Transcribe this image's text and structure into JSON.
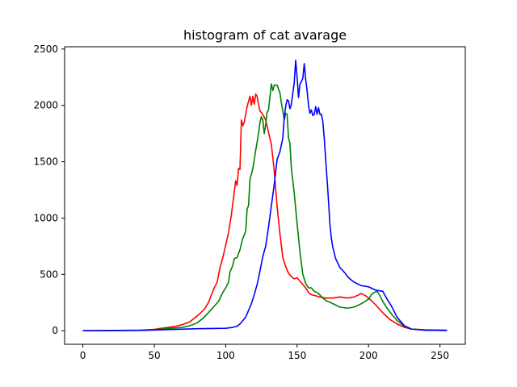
{
  "chart_data": {
    "type": "line",
    "title": "histogram of cat avarage",
    "xlabel": "",
    "ylabel": "",
    "xlim": [
      -12.75,
      267.75
    ],
    "ylim": [
      -120,
      2520
    ],
    "xticks": [
      0,
      50,
      100,
      150,
      200,
      250
    ],
    "yticks": [
      0,
      500,
      1000,
      1500,
      2000,
      2500
    ],
    "grid": false,
    "series": [
      {
        "color": "#ff0000",
        "points": [
          [
            0,
            0
          ],
          [
            20,
            2
          ],
          [
            40,
            5
          ],
          [
            50,
            12
          ],
          [
            55,
            22
          ],
          [
            60,
            30
          ],
          [
            65,
            40
          ],
          [
            70,
            55
          ],
          [
            75,
            80
          ],
          [
            80,
            130
          ],
          [
            85,
            190
          ],
          [
            88,
            250
          ],
          [
            90,
            320
          ],
          [
            92,
            380
          ],
          [
            94,
            430
          ],
          [
            96,
            560
          ],
          [
            98,
            650
          ],
          [
            100,
            760
          ],
          [
            102,
            870
          ],
          [
            104,
            1030
          ],
          [
            106,
            1230
          ],
          [
            107,
            1330
          ],
          [
            108,
            1290
          ],
          [
            109,
            1440
          ],
          [
            110,
            1430
          ],
          [
            111,
            1870
          ],
          [
            112,
            1820
          ],
          [
            113,
            1850
          ],
          [
            115,
            1990
          ],
          [
            117,
            2080
          ],
          [
            118,
            2000
          ],
          [
            119,
            2080
          ],
          [
            120,
            2010
          ],
          [
            121,
            2100
          ],
          [
            122,
            2080
          ],
          [
            123,
            2010
          ],
          [
            124,
            1950
          ],
          [
            126,
            1920
          ],
          [
            128,
            1870
          ],
          [
            130,
            1760
          ],
          [
            132,
            1650
          ],
          [
            134,
            1420
          ],
          [
            136,
            1100
          ],
          [
            138,
            860
          ],
          [
            140,
            650
          ],
          [
            142,
            570
          ],
          [
            144,
            510
          ],
          [
            146,
            480
          ],
          [
            148,
            460
          ],
          [
            150,
            470
          ],
          [
            152,
            440
          ],
          [
            154,
            410
          ],
          [
            156,
            380
          ],
          [
            158,
            340
          ],
          [
            160,
            320
          ],
          [
            163,
            310
          ],
          [
            166,
            300
          ],
          [
            170,
            290
          ],
          [
            175,
            290
          ],
          [
            180,
            300
          ],
          [
            185,
            290
          ],
          [
            190,
            300
          ],
          [
            195,
            330
          ],
          [
            198,
            310
          ],
          [
            200,
            290
          ],
          [
            205,
            230
          ],
          [
            210,
            160
          ],
          [
            215,
            100
          ],
          [
            220,
            60
          ],
          [
            225,
            30
          ],
          [
            230,
            15
          ],
          [
            240,
            8
          ],
          [
            255,
            5
          ]
        ]
      },
      {
        "color": "#008000",
        "points": [
          [
            0,
            0
          ],
          [
            20,
            2
          ],
          [
            40,
            5
          ],
          [
            50,
            10
          ],
          [
            55,
            15
          ],
          [
            60,
            20
          ],
          [
            65,
            25
          ],
          [
            70,
            30
          ],
          [
            75,
            45
          ],
          [
            80,
            70
          ],
          [
            85,
            120
          ],
          [
            90,
            190
          ],
          [
            95,
            260
          ],
          [
            98,
            340
          ],
          [
            100,
            380
          ],
          [
            102,
            430
          ],
          [
            103,
            520
          ],
          [
            105,
            580
          ],
          [
            106,
            640
          ],
          [
            108,
            650
          ],
          [
            110,
            720
          ],
          [
            112,
            820
          ],
          [
            114,
            880
          ],
          [
            115,
            1080
          ],
          [
            116,
            1110
          ],
          [
            117,
            1340
          ],
          [
            119,
            1440
          ],
          [
            121,
            1600
          ],
          [
            123,
            1750
          ],
          [
            124,
            1850
          ],
          [
            125,
            1900
          ],
          [
            126,
            1870
          ],
          [
            127,
            1750
          ],
          [
            128,
            1830
          ],
          [
            129,
            1940
          ],
          [
            130,
            1960
          ],
          [
            131,
            2080
          ],
          [
            132,
            2190
          ],
          [
            133,
            2130
          ],
          [
            134,
            2180
          ],
          [
            136,
            2180
          ],
          [
            138,
            2110
          ],
          [
            139,
            2020
          ],
          [
            140,
            1950
          ],
          [
            141,
            1870
          ],
          [
            142,
            1930
          ],
          [
            143,
            1920
          ],
          [
            144,
            1710
          ],
          [
            145,
            1660
          ],
          [
            146,
            1440
          ],
          [
            148,
            1220
          ],
          [
            150,
            950
          ],
          [
            152,
            700
          ],
          [
            154,
            500
          ],
          [
            156,
            420
          ],
          [
            158,
            380
          ],
          [
            160,
            380
          ],
          [
            162,
            350
          ],
          [
            165,
            330
          ],
          [
            168,
            290
          ],
          [
            170,
            270
          ],
          [
            175,
            240
          ],
          [
            180,
            210
          ],
          [
            185,
            200
          ],
          [
            190,
            210
          ],
          [
            195,
            240
          ],
          [
            200,
            280
          ],
          [
            202,
            320
          ],
          [
            204,
            340
          ],
          [
            206,
            350
          ],
          [
            208,
            310
          ],
          [
            210,
            260
          ],
          [
            213,
            200
          ],
          [
            216,
            150
          ],
          [
            220,
            90
          ],
          [
            225,
            40
          ],
          [
            230,
            15
          ],
          [
            240,
            5
          ],
          [
            255,
            3
          ]
        ]
      },
      {
        "color": "#0000ff",
        "points": [
          [
            0,
            0
          ],
          [
            20,
            1
          ],
          [
            40,
            3
          ],
          [
            60,
            10
          ],
          [
            80,
            18
          ],
          [
            90,
            20
          ],
          [
            100,
            22
          ],
          [
            105,
            30
          ],
          [
            108,
            40
          ],
          [
            110,
            60
          ],
          [
            112,
            90
          ],
          [
            114,
            120
          ],
          [
            116,
            180
          ],
          [
            118,
            240
          ],
          [
            120,
            320
          ],
          [
            122,
            410
          ],
          [
            124,
            530
          ],
          [
            126,
            660
          ],
          [
            128,
            750
          ],
          [
            130,
            920
          ],
          [
            132,
            1110
          ],
          [
            134,
            1300
          ],
          [
            136,
            1520
          ],
          [
            138,
            1590
          ],
          [
            140,
            1710
          ],
          [
            141,
            1890
          ],
          [
            142,
            1990
          ],
          [
            143,
            2050
          ],
          [
            144,
            2040
          ],
          [
            145,
            1970
          ],
          [
            146,
            2010
          ],
          [
            147,
            2110
          ],
          [
            148,
            2200
          ],
          [
            149,
            2400
          ],
          [
            150,
            2250
          ],
          [
            151,
            2070
          ],
          [
            152,
            2190
          ],
          [
            153,
            2210
          ],
          [
            154,
            2240
          ],
          [
            155,
            2370
          ],
          [
            156,
            2230
          ],
          [
            157,
            2130
          ],
          [
            158,
            2000
          ],
          [
            159,
            1930
          ],
          [
            160,
            1960
          ],
          [
            161,
            1910
          ],
          [
            162,
            1920
          ],
          [
            163,
            1990
          ],
          [
            164,
            1920
          ],
          [
            165,
            1980
          ],
          [
            166,
            1920
          ],
          [
            167,
            1920
          ],
          [
            168,
            1860
          ],
          [
            169,
            1710
          ],
          [
            170,
            1520
          ],
          [
            171,
            1340
          ],
          [
            172,
            1150
          ],
          [
            173,
            940
          ],
          [
            174,
            820
          ],
          [
            175,
            740
          ],
          [
            177,
            640
          ],
          [
            180,
            560
          ],
          [
            183,
            520
          ],
          [
            186,
            470
          ],
          [
            190,
            430
          ],
          [
            195,
            400
          ],
          [
            200,
            390
          ],
          [
            205,
            360
          ],
          [
            210,
            350
          ],
          [
            213,
            280
          ],
          [
            216,
            220
          ],
          [
            220,
            120
          ],
          [
            225,
            45
          ],
          [
            230,
            15
          ],
          [
            240,
            5
          ],
          [
            255,
            3
          ]
        ]
      }
    ]
  }
}
